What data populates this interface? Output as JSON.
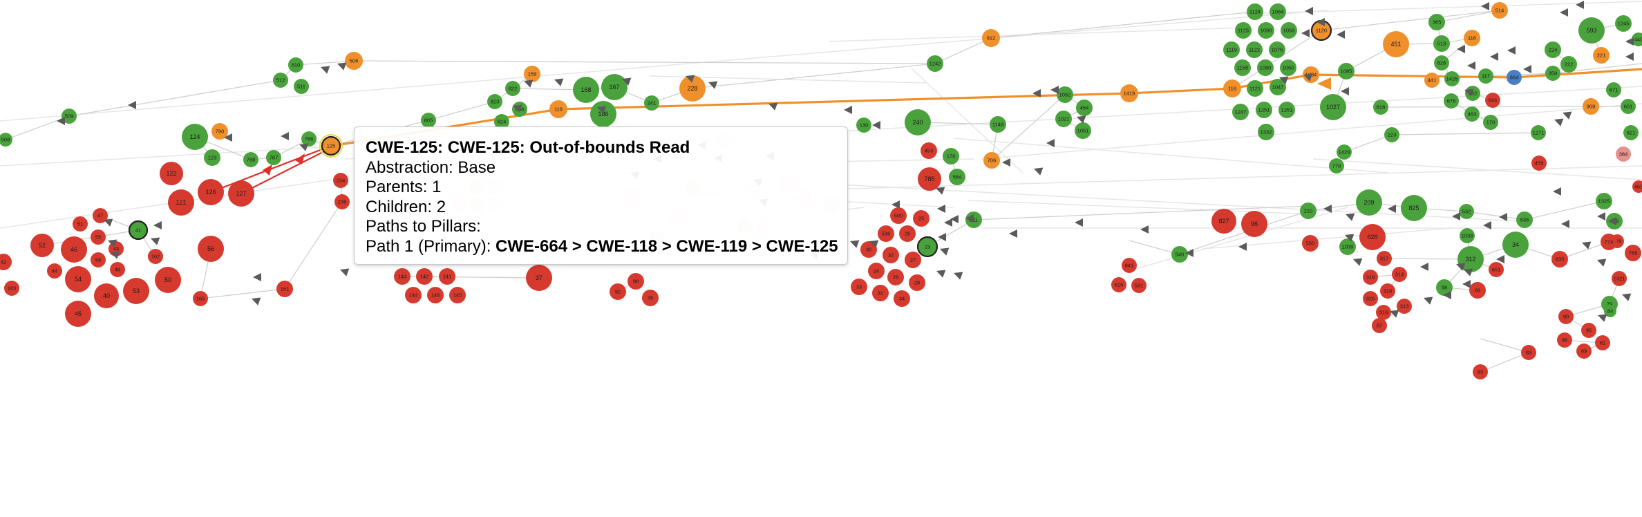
{
  "colors": {
    "variant": "#4aa23c",
    "category": "#f0902c",
    "class": "#d63a2e",
    "pillar": "#4a7fc4",
    "class_faded": "#e6918b",
    "edge": "#d0d0d0",
    "arrow": "#5a5a5a",
    "path_orange": "#f0902c",
    "path_red": "#e0302a"
  },
  "graph": {
    "hovered_node": "125",
    "highlighted_nodes": [
      "125",
      "1120",
      "41",
      "23"
    ],
    "nodes": [
      {
        "id": "508",
        "t": "variant"
      },
      {
        "id": "509",
        "t": "variant"
      },
      {
        "id": "510",
        "t": "variant"
      },
      {
        "id": "511",
        "t": "variant"
      },
      {
        "id": "512",
        "t": "variant"
      },
      {
        "id": "506",
        "t": "category"
      },
      {
        "id": "790",
        "t": "category"
      },
      {
        "id": "124",
        "t": "variant"
      },
      {
        "id": "123",
        "t": "variant"
      },
      {
        "id": "786",
        "t": "variant"
      },
      {
        "id": "787",
        "t": "variant"
      },
      {
        "id": "788",
        "t": "variant"
      },
      {
        "id": "125",
        "t": "category"
      },
      {
        "id": "122",
        "t": "class"
      },
      {
        "id": "121",
        "t": "class"
      },
      {
        "id": "126",
        "t": "class"
      },
      {
        "id": "127",
        "t": "class"
      },
      {
        "id": "47",
        "t": "class"
      },
      {
        "id": "51",
        "t": "class"
      },
      {
        "id": "41",
        "t": "variant"
      },
      {
        "id": "52",
        "t": "class"
      },
      {
        "id": "46",
        "t": "class"
      },
      {
        "id": "55",
        "t": "class"
      },
      {
        "id": "43",
        "t": "class"
      },
      {
        "id": "42",
        "t": "class"
      },
      {
        "id": "44",
        "t": "class"
      },
      {
        "id": "54",
        "t": "class"
      },
      {
        "id": "58",
        "t": "class"
      },
      {
        "id": "48",
        "t": "class"
      },
      {
        "id": "162",
        "t": "class"
      },
      {
        "id": "56",
        "t": "class"
      },
      {
        "id": "50",
        "t": "class"
      },
      {
        "id": "53",
        "t": "class"
      },
      {
        "id": "40",
        "t": "class"
      },
      {
        "id": "45",
        "t": "class"
      },
      {
        "id": "183",
        "t": "class"
      },
      {
        "id": "165",
        "t": "class"
      },
      {
        "id": "161",
        "t": "class"
      },
      {
        "id": "234",
        "t": "class"
      },
      {
        "id": "236",
        "t": "class"
      },
      {
        "id": "159",
        "t": "category"
      },
      {
        "id": "822",
        "t": "variant"
      },
      {
        "id": "823",
        "t": "variant"
      },
      {
        "id": "466",
        "t": "variant"
      },
      {
        "id": "624",
        "t": "variant"
      },
      {
        "id": "805",
        "t": "variant"
      },
      {
        "id": "168",
        "t": "variant"
      },
      {
        "id": "167",
        "t": "variant"
      },
      {
        "id": "119",
        "t": "category"
      },
      {
        "id": "186",
        "t": "variant"
      },
      {
        "id": "241",
        "t": "variant"
      },
      {
        "id": "228",
        "t": "category"
      },
      {
        "id": "143",
        "t": "class"
      },
      {
        "id": "142",
        "t": "class"
      },
      {
        "id": "141",
        "t": "class"
      },
      {
        "id": "144",
        "t": "class"
      },
      {
        "id": "146",
        "t": "class"
      },
      {
        "id": "145",
        "t": "class"
      },
      {
        "id": "37",
        "t": "class"
      },
      {
        "id": "92",
        "t": "class"
      },
      {
        "id": "98",
        "t": "class"
      },
      {
        "id": "35",
        "t": "class"
      },
      {
        "id": "130",
        "t": "variant"
      },
      {
        "id": "240",
        "t": "variant"
      },
      {
        "id": "1242",
        "t": "variant"
      },
      {
        "id": "912",
        "t": "category"
      },
      {
        "id": "1148",
        "t": "variant"
      },
      {
        "id": "453",
        "t": "class"
      },
      {
        "id": "176",
        "t": "variant"
      },
      {
        "id": "785",
        "t": "class"
      },
      {
        "id": "584",
        "t": "variant"
      },
      {
        "id": "706",
        "t": "category"
      },
      {
        "id": "590",
        "t": "class"
      },
      {
        "id": "25",
        "t": "class"
      },
      {
        "id": "536",
        "t": "class"
      },
      {
        "id": "26",
        "t": "class"
      },
      {
        "id": "23",
        "t": "variant"
      },
      {
        "id": "211",
        "t": "variant"
      },
      {
        "id": "30",
        "t": "class"
      },
      {
        "id": "32",
        "t": "class"
      },
      {
        "id": "27",
        "t": "class"
      },
      {
        "id": "24",
        "t": "class"
      },
      {
        "id": "29",
        "t": "class"
      },
      {
        "id": "28",
        "t": "class"
      },
      {
        "id": "33",
        "t": "class"
      },
      {
        "id": "31",
        "t": "class"
      },
      {
        "id": "34",
        "t": "class"
      },
      {
        "id": "1052",
        "t": "variant"
      },
      {
        "id": "454",
        "t": "variant"
      },
      {
        "id": "1021",
        "t": "variant"
      },
      {
        "id": "1051",
        "t": "variant"
      },
      {
        "id": "1419",
        "t": "category"
      },
      {
        "id": "1124",
        "t": "variant"
      },
      {
        "id": "1064",
        "t": "variant"
      },
      {
        "id": "1125",
        "t": "variant"
      },
      {
        "id": "1090",
        "t": "variant"
      },
      {
        "id": "1059",
        "t": "variant"
      },
      {
        "id": "1120",
        "t": "category"
      },
      {
        "id": "1119",
        "t": "variant"
      },
      {
        "id": "1122",
        "t": "variant"
      },
      {
        "id": "1075",
        "t": "variant"
      },
      {
        "id": "1158",
        "t": "variant"
      },
      {
        "id": "1080",
        "t": "variant"
      },
      {
        "id": "1060",
        "t": "variant"
      },
      {
        "id": "118",
        "t": "category"
      },
      {
        "id": "1121",
        "t": "variant"
      },
      {
        "id": "1047",
        "t": "variant"
      },
      {
        "id": "1384",
        "t": "category"
      },
      {
        "id": "1247",
        "t": "variant"
      },
      {
        "id": "1251",
        "t": "variant"
      },
      {
        "id": "1261",
        "t": "variant"
      },
      {
        "id": "1332",
        "t": "variant"
      },
      {
        "id": "1027",
        "t": "variant"
      },
      {
        "id": "1085",
        "t": "variant"
      },
      {
        "id": "451",
        "t": "category"
      },
      {
        "id": "818",
        "t": "variant"
      },
      {
        "id": "1429",
        "t": "variant"
      },
      {
        "id": "778",
        "t": "variant"
      },
      {
        "id": "223",
        "t": "variant"
      },
      {
        "id": "514",
        "t": "category"
      },
      {
        "id": "365",
        "t": "variant"
      },
      {
        "id": "513",
        "t": "variant"
      },
      {
        "id": "116",
        "t": "category"
      },
      {
        "id": "828",
        "t": "variant"
      },
      {
        "id": "441",
        "t": "category"
      },
      {
        "id": "1426",
        "t": "variant"
      },
      {
        "id": "117",
        "t": "variant"
      },
      {
        "id": "664",
        "t": "pillar"
      },
      {
        "id": "182",
        "t": "variant"
      },
      {
        "id": "644",
        "t": "class"
      },
      {
        "id": "676",
        "t": "variant"
      },
      {
        "id": "463",
        "t": "variant"
      },
      {
        "id": "170",
        "t": "variant"
      },
      {
        "id": "593",
        "t": "variant"
      },
      {
        "id": "221",
        "t": "category"
      },
      {
        "id": "224",
        "t": "variant"
      },
      {
        "id": "222",
        "t": "variant"
      },
      {
        "id": "358",
        "t": "variant"
      },
      {
        "id": "1245",
        "t": "variant"
      },
      {
        "id": "440",
        "t": "variant"
      },
      {
        "id": "671",
        "t": "variant"
      },
      {
        "id": "909",
        "t": "category"
      },
      {
        "id": "601",
        "t": "variant"
      },
      {
        "id": "1271",
        "t": "variant"
      },
      {
        "id": "459",
        "t": "class"
      },
      {
        "id": "921",
        "t": "variant"
      },
      {
        "id": "384",
        "t": "class_faded"
      },
      {
        "id": "827",
        "t": "class"
      },
      {
        "id": "96",
        "t": "class"
      },
      {
        "id": "210",
        "t": "variant"
      },
      {
        "id": "550",
        "t": "class"
      },
      {
        "id": "209",
        "t": "variant"
      },
      {
        "id": "825",
        "t": "variant"
      },
      {
        "id": "532",
        "t": "variant"
      },
      {
        "id": "1038",
        "t": "variant"
      },
      {
        "id": "636",
        "t": "variant"
      },
      {
        "id": "1325",
        "t": "variant"
      },
      {
        "id": "829",
        "t": "variant"
      },
      {
        "id": "463b",
        "t": "class"
      },
      {
        "id": "829b",
        "t": "class"
      },
      {
        "id": "841",
        "t": "class"
      },
      {
        "id": "540",
        "t": "variant"
      },
      {
        "id": "615",
        "t": "class"
      },
      {
        "id": "531",
        "t": "class"
      },
      {
        "id": "317",
        "t": "class"
      },
      {
        "id": "312",
        "t": "variant"
      },
      {
        "id": "34b",
        "t": "variant"
      },
      {
        "id": "835",
        "t": "class"
      },
      {
        "id": "774",
        "t": "class"
      },
      {
        "id": "789",
        "t": "class"
      },
      {
        "id": "319",
        "t": "class"
      },
      {
        "id": "314",
        "t": "class"
      },
      {
        "id": "318",
        "t": "class"
      },
      {
        "id": "98b",
        "t": "variant"
      },
      {
        "id": "651",
        "t": "class"
      },
      {
        "id": "326",
        "t": "class"
      },
      {
        "id": "316",
        "t": "class"
      },
      {
        "id": "313",
        "t": "class"
      },
      {
        "id": "66",
        "t": "class"
      },
      {
        "id": "1321",
        "t": "class"
      },
      {
        "id": "79",
        "t": "variant"
      },
      {
        "id": "87",
        "t": "class"
      },
      {
        "id": "90",
        "t": "class"
      },
      {
        "id": "95",
        "t": "class"
      },
      {
        "id": "86",
        "t": "class"
      },
      {
        "id": "81",
        "t": "class"
      },
      {
        "id": "89",
        "t": "class"
      },
      {
        "id": "83",
        "t": "class"
      },
      {
        "id": "93",
        "t": "class"
      },
      {
        "id": "84",
        "t": "variant"
      },
      {
        "id": "628",
        "t": "class"
      },
      {
        "id": "1039",
        "t": "variant"
      }
    ]
  },
  "tooltip": {
    "title": "CWE-125: CWE-125: Out-of-bounds Read",
    "abstraction_label": "Abstraction:",
    "abstraction_value": "Base",
    "parents_label": "Parents:",
    "parents_value": "1",
    "children_label": "Children:",
    "children_value": "2",
    "paths_header": "Paths to Pillars:",
    "path_label": "Path 1 (Primary):",
    "path_value": "CWE-664 > CWE-118 > CWE-119 > CWE-125"
  }
}
